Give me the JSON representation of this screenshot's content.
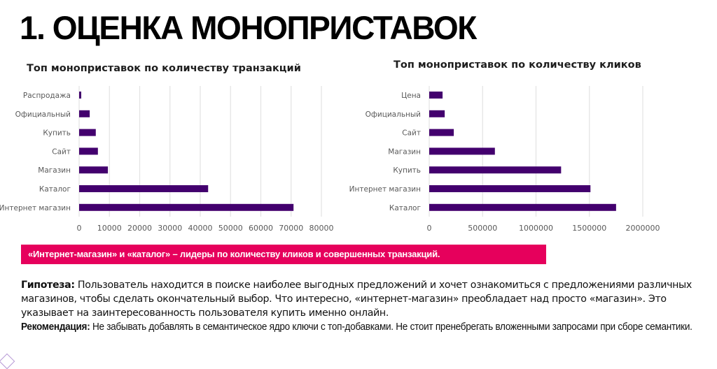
{
  "page": {
    "title": "1. ОЦЕНКА МОНОПРИСТАВОК",
    "banner": "«Интернет-магазин» и «каталог» – лидеры по количеству кликов и совершенных транзакций.",
    "hypothesis_label": "Гипотеза:",
    "hypothesis_text": " Пользователь находится в поиске наиболее выгодных предложений и хочет ознакомиться с предложениями различных магазинов, чтобы сделать окончательный выбор. Что интересно, «интернет-магазин» преобладает над просто «магазин». Это указывает на заинтересованность пользователя купить именно онлайн.",
    "recommendation_label": "Рекомендация:",
    "recommendation_text": " Не забывать добавлять в семантическое ядро ключи с топ-добавками. Не стоит пренебрегать вложенными запросами при сборе семантики.",
    "colors": {
      "bar": "#43006e",
      "banner": "#e6005c",
      "grid": "#e3e3e3"
    }
  },
  "chart_data": [
    {
      "type": "bar",
      "orientation": "horizontal",
      "title": "Топ моноприставок по количеству транзакций",
      "categories": [
        "Распродажа",
        "Официальный",
        "Купить",
        "Сайт",
        "Магазин",
        "Каталог",
        "Интернет магазин"
      ],
      "values": [
        700,
        3500,
        5500,
        6200,
        9500,
        42600,
        70800
      ],
      "xlim": [
        0,
        80000
      ],
      "xticks": [
        "0",
        "10000",
        "20000",
        "30000",
        "40000",
        "50000",
        "60000",
        "70000",
        "80000"
      ],
      "xtick_values": [
        0,
        10000,
        20000,
        30000,
        40000,
        50000,
        60000,
        70000,
        80000
      ],
      "xlabel": "",
      "ylabel": "",
      "grid": true,
      "legend": "none"
    },
    {
      "type": "bar",
      "orientation": "horizontal",
      "title": "Топ моноприставок по количеству кликов",
      "categories": [
        "Цена",
        "Официальный",
        "Сайт",
        "Магазин",
        "Купить",
        "Интернет магазин",
        "Каталог"
      ],
      "values": [
        125000,
        145000,
        230000,
        615000,
        1235000,
        1510000,
        1750000
      ],
      "xlim": [
        0,
        2000000
      ],
      "xticks": [
        "0",
        "500000",
        "1000000",
        "1500000",
        "2000000"
      ],
      "xtick_values": [
        0,
        500000,
        1000000,
        1500000,
        2000000
      ],
      "xlabel": "",
      "ylabel": "",
      "grid": true,
      "legend": "none"
    }
  ]
}
